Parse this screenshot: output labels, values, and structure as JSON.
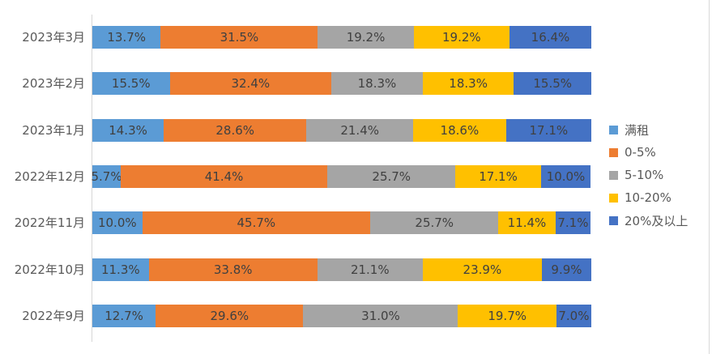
{
  "chart_data": {
    "type": "bar",
    "orientation": "horizontal",
    "stacked": true,
    "title": "",
    "xlabel": "",
    "ylabel": "",
    "xlim": [
      0,
      100
    ],
    "grid": false,
    "data_labels": true,
    "legend_position": "right",
    "categories": [
      "2023年3月",
      "2023年2月",
      "2023年1月",
      "2022年12月",
      "2022年11月",
      "2022年10月",
      "2022年9月"
    ],
    "series": [
      {
        "name": "满租",
        "color": "#5B9BD5",
        "values": [
          13.7,
          15.5,
          14.3,
          5.7,
          10.0,
          11.3,
          12.7
        ],
        "labels": [
          "13.7%",
          "15.5%",
          "14.3%",
          "5.7%",
          "10.0%",
          "11.3%",
          "12.7%"
        ]
      },
      {
        "name": "0-5%",
        "color": "#ED7D31",
        "values": [
          31.5,
          32.4,
          28.6,
          41.4,
          45.7,
          33.8,
          29.6
        ],
        "labels": [
          "31.5%",
          "32.4%",
          "28.6%",
          "41.4%",
          "45.7%",
          "33.8%",
          "29.6%"
        ]
      },
      {
        "name": "5-10%",
        "color": "#A5A5A5",
        "values": [
          19.2,
          18.3,
          21.4,
          25.7,
          25.7,
          21.1,
          31.0
        ],
        "labels": [
          "19.2%",
          "18.3%",
          "21.4%",
          "25.7%",
          "25.7%",
          "21.1%",
          "31.0%"
        ]
      },
      {
        "name": "10-20%",
        "color": "#FFC000",
        "values": [
          19.2,
          18.3,
          18.6,
          17.1,
          11.4,
          23.9,
          19.7
        ],
        "labels": [
          "19.2%",
          "18.3%",
          "18.6%",
          "17.1%",
          "11.4%",
          "23.9%",
          "19.7%"
        ]
      },
      {
        "name": "20%及以上",
        "color": "#4472C4",
        "values": [
          16.4,
          15.5,
          17.1,
          10.0,
          7.1,
          9.9,
          7.0
        ],
        "labels": [
          "16.4%",
          "15.5%",
          "17.1%",
          "10.0%",
          "7.1%",
          "9.9%",
          "7.0%"
        ]
      }
    ],
    "colors": {
      "axis_line": "#D6D6D6",
      "right_border": "#D9D9D9",
      "data_label_text": "#404040",
      "category_label_text": "#595959",
      "legend_text": "#595959"
    }
  }
}
